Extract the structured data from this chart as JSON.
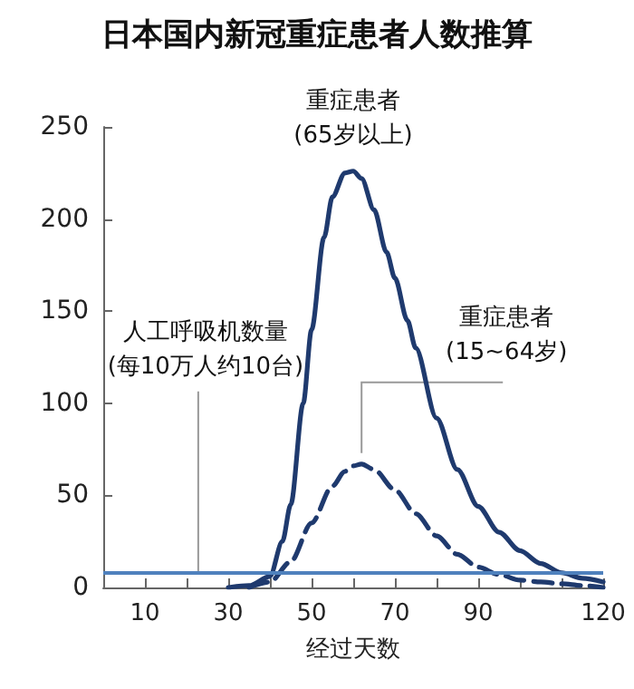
{
  "chart_data": {
    "type": "line",
    "title": "日本国内新冠重症患者人数推算",
    "xlabel": "经过天数",
    "xlim": [
      0,
      120
    ],
    "xticks": [
      10,
      {
        "value": 20,
        "label": null
      },
      30,
      {
        "value": 40,
        "label": null
      },
      50,
      {
        "value": 60,
        "label": null
      },
      70,
      {
        "value": 80,
        "label": null
      },
      90,
      {
        "value": 100,
        "label": null
      },
      {
        "value": 110,
        "label": null
      },
      120
    ],
    "ylim": [
      0,
      250
    ],
    "yticks": [
      0,
      50,
      100,
      150,
      200,
      250
    ],
    "grid": false,
    "legend": false,
    "marker": "none",
    "series": [
      {
        "name": "重症患者\n(65岁以上)",
        "color": "#1f3a6e",
        "line_style": "solid",
        "x": [
          30,
          35,
          40,
          43,
          45,
          48,
          50,
          53,
          55,
          58,
          60,
          62,
          65,
          68,
          70,
          73,
          75,
          80,
          85,
          90,
          95,
          100,
          105,
          110,
          115,
          120
        ],
        "values": [
          0,
          1,
          6,
          25,
          45,
          100,
          140,
          190,
          212,
          225,
          226,
          222,
          205,
          182,
          168,
          145,
          130,
          92,
          64,
          44,
          30,
          20,
          13,
          8,
          5,
          3
        ]
      },
      {
        "name": "重症患者\n(15~64岁)",
        "color": "#1f3a6e",
        "line_style": "dashed",
        "x": [
          35,
          40,
          45,
          50,
          55,
          58,
          60,
          62,
          65,
          70,
          75,
          80,
          85,
          90,
          95,
          100,
          105,
          110,
          115,
          120
        ],
        "values": [
          0,
          3,
          14,
          35,
          55,
          63,
          66,
          67,
          64,
          53,
          40,
          28,
          18,
          11,
          7,
          4,
          3,
          2,
          1,
          0
        ]
      }
    ],
    "ref_lines": [
      {
        "axis": "y",
        "value": 8,
        "label": "人工呼吸机数量\n(每10万人约10台)",
        "color": "#4f81bd"
      }
    ]
  }
}
